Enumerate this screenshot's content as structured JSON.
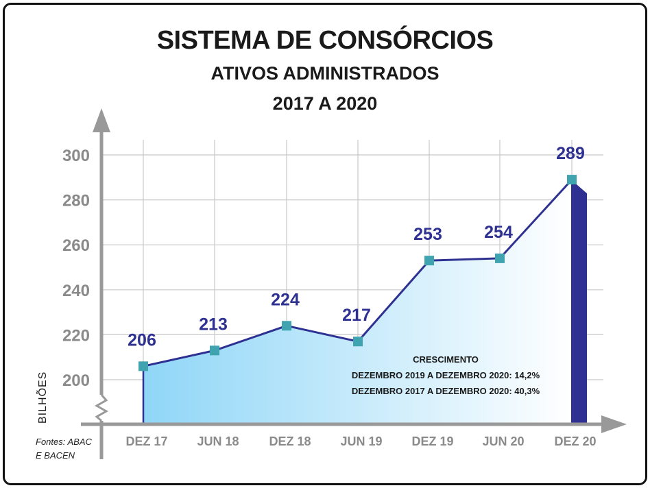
{
  "title": "SISTEMA DE CONSÓRCIOS",
  "subtitle": "ATIVOS ADMINISTRADOS",
  "period": "2017 A 2020",
  "source_line1": "Fontes: ABAC",
  "source_line2": "E BACEN",
  "growth": {
    "heading": "CRESCIMENTO",
    "line1": "DEZEMBRO 2019 A DEZEMBRO 2020: 14,2%",
    "line2": "DEZEMBRO 2017 A DEZEMBRO 2020: 40,3%"
  },
  "colors": {
    "line": "#2e3192",
    "marker": "#3fa3b0",
    "label": "#2e3192",
    "axis": "#999999",
    "grid": "#c8c8c8",
    "last_bar": "#2e3192",
    "area_start": "#8fd6f7",
    "area_end": "#ffffff"
  },
  "chart_data": {
    "type": "area",
    "title": "SISTEMA DE CONSÓRCIOS",
    "ylabel": "BILHÕES",
    "categories": [
      "DEZ 17",
      "JUN 18",
      "DEZ 18",
      "JUN 19",
      "DEZ 19",
      "JUN 20",
      "DEZ 20"
    ],
    "values": [
      206,
      213,
      224,
      217,
      253,
      254,
      289
    ],
    "ylim": [
      200,
      300
    ],
    "yticks": [
      200,
      220,
      240,
      260,
      280,
      300
    ],
    "grid": true,
    "axis_break": true
  }
}
